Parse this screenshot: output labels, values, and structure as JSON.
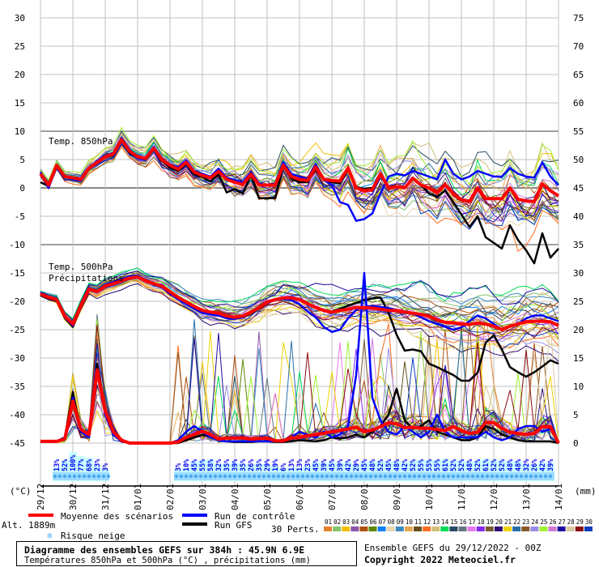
{
  "chart_data": {
    "type": "line",
    "title": "Diagramme des ensembles GEFS sur 384h : 45.9N 6.9E",
    "subtitle": "Températures 850hPa et 500hPa (°C) , précipitations (mm)",
    "run_info": "Ensemble GEFS du 29/12/2022 - 00Z",
    "copyright": "Copyright 2022 Meteociel.fr",
    "altitude_label": "Alt. 1889m",
    "time_step_hours": 6,
    "n_steps": 65,
    "left_axis": {
      "unit_label": "(°C)",
      "ylim": [
        -45,
        30
      ],
      "ticks": [
        "30",
        "25",
        "20",
        "15",
        "10",
        "5",
        "0",
        "-5",
        "-10",
        "-15",
        "-20",
        "-25",
        "-30",
        "-35",
        "-40",
        "-45"
      ]
    },
    "right_axis": {
      "unit_label": "(mm)",
      "ylim": [
        0,
        75
      ],
      "ticks": [
        "75",
        "70",
        "65",
        "60",
        "55",
        "50",
        "45",
        "40",
        "35",
        "30",
        "25",
        "20",
        "15",
        "10",
        "5",
        "0"
      ]
    },
    "x_ticks": [
      "29/12",
      "30/12",
      "31/12",
      "01/01",
      "02/01",
      "03/01",
      "04/01",
      "05/01",
      "06/01",
      "07/01",
      "08/01",
      "09/01",
      "10/01",
      "11/01",
      "12/01",
      "13/01",
      "14/01"
    ],
    "panel_labels": {
      "t850": "Temp. 850hPa",
      "t500": "Temp. 500hPa",
      "precip": "Précipitations"
    },
    "grid": true,
    "series": {
      "t850_mean": [
        2.5,
        0.5,
        4,
        2,
        1.8,
        1.5,
        3.5,
        4.5,
        5.5,
        6,
        8.5,
        6.5,
        5.5,
        5.2,
        7,
        5,
        4,
        3.3,
        4.5,
        2.8,
        2.2,
        1.8,
        2.9,
        1.5,
        1,
        0.6,
        2.4,
        0.5,
        0.5,
        0.5,
        4,
        2,
        1.5,
        1.3,
        3.7,
        1.5,
        1.3,
        1.2,
        3.5,
        0,
        -0.5,
        -0.3,
        2.5,
        0,
        0.2,
        0,
        1.7,
        0.5,
        0,
        -0.9,
        0.6,
        -1,
        -2.1,
        -2.4,
        0,
        -1.9,
        -1.9,
        -1.9,
        0,
        -2,
        -2.3,
        -2.4,
        0.7,
        -0.5,
        -1.4
      ],
      "t850_control": [
        2.8,
        0,
        3.8,
        2.2,
        1.5,
        1.2,
        3.3,
        4.8,
        5.7,
        6.2,
        8.8,
        6.8,
        5.3,
        5,
        7.3,
        5.2,
        4.2,
        3.6,
        4.8,
        3,
        2.5,
        2,
        3.4,
        1.8,
        1.4,
        1,
        2.8,
        0.8,
        0.5,
        0.8,
        4.5,
        2.5,
        2,
        1.6,
        4.2,
        1.4,
        0.5,
        -2.5,
        -3,
        -5.8,
        -5.5,
        -4.5,
        -1,
        2,
        2.5,
        2.2,
        3,
        2.5,
        2,
        1.5,
        5,
        2.5,
        1.5,
        2,
        3,
        2.5,
        2,
        2,
        3.5,
        2.5,
        2,
        1.8,
        4.5,
        2,
        0.5
      ],
      "t850_gfs": [
        1,
        0.3,
        3.8,
        2,
        1.6,
        1.2,
        3.4,
        4.4,
        5.4,
        5.8,
        8.3,
        6.2,
        5.4,
        5,
        6.8,
        4.8,
        3.6,
        3,
        4.2,
        2.4,
        1.9,
        1.1,
        2.4,
        -0.8,
        -0.2,
        -1,
        2.3,
        -1.8,
        -1.8,
        -1.8,
        3.8,
        1.6,
        1,
        1,
        3.4,
        1.4,
        1,
        0.8,
        3.2,
        0.2,
        -0.2,
        0,
        2.4,
        0.2,
        0.3,
        0,
        1.5,
        0.5,
        -1,
        -1.5,
        -0.5,
        -2.5,
        -4.7,
        -6.9,
        -5,
        -8.7,
        -9.7,
        -10.7,
        -6.6,
        -9.2,
        -11,
        -13.3,
        -8,
        -12.3,
        -10.7
      ],
      "t500_mean": [
        -18.7,
        -19.3,
        -19.7,
        -22.6,
        -24,
        -20.7,
        -17.8,
        -18.3,
        -17.3,
        -16.9,
        -16.4,
        -15.9,
        -15.7,
        -16.4,
        -16.9,
        -17.3,
        -18.3,
        -19.3,
        -20.1,
        -20.9,
        -21.6,
        -21.9,
        -22.1,
        -22.6,
        -22.8,
        -22.6,
        -21.9,
        -21.1,
        -20.1,
        -19.7,
        -19.4,
        -19.4,
        -19.7,
        -20.4,
        -21.1,
        -21.6,
        -21.9,
        -21.6,
        -21.4,
        -21.1,
        -21.1,
        -21.2,
        -21.4,
        -21.6,
        -21.6,
        -21.9,
        -22.1,
        -22.3,
        -22.6,
        -23.3,
        -23.7,
        -23.8,
        -24,
        -24.1,
        -23.8,
        -24,
        -24.4,
        -25,
        -24.4,
        -24,
        -23.6,
        -23.5,
        -23.5,
        -23.6,
        -24.3
      ],
      "t500_control": [
        -18.5,
        -19.2,
        -19.8,
        -22.8,
        -24.3,
        -20.5,
        -17.6,
        -18.2,
        -17.1,
        -16.6,
        -16.1,
        -15.6,
        -15.5,
        -16.3,
        -16.8,
        -17.5,
        -18.6,
        -19.6,
        -20.5,
        -21.3,
        -22,
        -22.3,
        -22.5,
        -23,
        -23.1,
        -22.8,
        -22,
        -21.2,
        -20.3,
        -19.8,
        -19.6,
        -19.8,
        -20.5,
        -21.8,
        -22.8,
        -24.5,
        -25.4,
        -25,
        -23,
        -21.5,
        -21,
        -20.8,
        -21,
        -21.2,
        -21.5,
        -22,
        -22.2,
        -22.8,
        -23.5,
        -24,
        -24.5,
        -25,
        -24.6,
        -23.5,
        -22.5,
        -23,
        -24,
        -25,
        -24.5,
        -24,
        -23,
        -22.5,
        -22.5,
        -23,
        -23.5
      ],
      "t500_gfs": [
        -18.9,
        -19.5,
        -19.9,
        -22.9,
        -24.5,
        -20.9,
        -18,
        -18.4,
        -17.4,
        -17,
        -16.5,
        -16,
        -15.8,
        -16.5,
        -17,
        -17.4,
        -18.4,
        -19.4,
        -20.2,
        -21,
        -21.7,
        -22,
        -22.2,
        -22.7,
        -22.9,
        -22.7,
        -22,
        -21.2,
        -20.2,
        -19.8,
        -19.5,
        -19.5,
        -19.8,
        -20.5,
        -21.2,
        -21.7,
        -21.8,
        -21.3,
        -20.8,
        -20.3,
        -19.8,
        -19.5,
        -19.3,
        -22,
        -25.9,
        -28.7,
        -28.5,
        -28.8,
        -31,
        -31.6,
        -32.3,
        -33,
        -34,
        -34,
        -32.6,
        -27.3,
        -26,
        -28.5,
        -31.6,
        -32.5,
        -33.3,
        -32.5,
        -31.5,
        -30.4,
        -31
      ],
      "precip_mean": [
        0.3,
        0.3,
        0.3,
        0.7,
        7.4,
        2.4,
        1.5,
        12.9,
        5.7,
        2,
        0.5,
        0,
        0,
        0,
        0,
        0,
        0,
        0.2,
        1,
        1.5,
        2.1,
        1.5,
        0.7,
        0.9,
        0.9,
        0.9,
        0.7,
        0.8,
        0.9,
        0.4,
        0.4,
        0.9,
        1,
        1.3,
        1.5,
        1.7,
        2,
        2.2,
        2.5,
        2.8,
        2,
        2.3,
        2.9,
        3.6,
        3.4,
        2.7,
        2.8,
        2.6,
        2.6,
        2.4,
        2.2,
        2.9,
        2.2,
        1.7,
        1.9,
        3.6,
        3.6,
        2.6,
        1.9,
        1.7,
        1.5,
        1.7,
        2.9,
        2.9,
        0
      ],
      "precip_control": [
        0.3,
        0.3,
        0.3,
        1,
        8,
        2,
        1,
        13,
        5,
        1.5,
        0.3,
        0,
        0,
        0,
        0,
        0,
        0,
        0.5,
        2,
        3,
        2,
        1,
        0.5,
        0.3,
        0.3,
        0.3,
        0.3,
        0.3,
        0.3,
        0.3,
        0.5,
        1,
        2,
        1.5,
        1,
        2,
        1,
        1.5,
        3,
        12,
        30,
        8,
        4,
        2,
        1.5,
        3,
        2,
        1,
        2,
        5,
        2,
        1,
        1,
        1,
        1,
        2,
        1,
        0.5,
        1,
        2.5,
        3,
        3,
        2,
        2.5,
        0
      ],
      "precip_gfs": [
        0.3,
        0.3,
        0.3,
        1,
        9,
        2,
        1,
        14,
        6,
        1.5,
        0.3,
        0,
        0,
        0,
        0,
        0,
        0,
        0,
        0.5,
        1,
        1.5,
        1,
        0.5,
        0.3,
        0.2,
        0.2,
        0.2,
        0.3,
        0.3,
        0.2,
        0.2,
        0.3,
        0.5,
        0.4,
        0.3,
        0.5,
        1,
        0.8,
        1,
        1.5,
        1,
        2,
        3,
        5,
        9.6,
        4,
        2.5,
        3,
        4,
        2,
        1.5,
        1,
        0.5,
        0.5,
        1,
        3,
        2.5,
        1.5,
        1,
        0.5,
        0.3,
        0.3,
        0.3,
        0.3,
        0
      ]
    },
    "members": {
      "count": 30,
      "spread_t850_start": 0.5,
      "spread_t850_end": 5,
      "spread_t500_start": 0.4,
      "spread_t500_end": 5,
      "labels": [
        "01",
        "02",
        "03",
        "04",
        "05",
        "06",
        "07",
        "08",
        "09",
        "10",
        "11",
        "12",
        "13",
        "14",
        "15",
        "16",
        "17",
        "18",
        "19",
        "20",
        "21",
        "22",
        "23",
        "24",
        "25",
        "26",
        "27",
        "28",
        "29",
        "30"
      ],
      "colors": [
        "#e6822e",
        "#82c46e",
        "#f0c000",
        "#8e55aa",
        "#b05010",
        "#5a8a00",
        "#0a80ff",
        "#e8d6b0",
        "#3c8cbe",
        "#e6a850",
        "#64501e",
        "#ff6e1e",
        "#d2be78",
        "#00dc5a",
        "#284a64",
        "#647882",
        "#e678f0",
        "#8228f0",
        "#785a32",
        "#2d0a78",
        "#f0d200",
        "#286eaa",
        "#8c5a28",
        "#9a8ce6",
        "#a0f032",
        "#d278d2",
        "#1e0aa0",
        "#dcc8a0",
        "#8c0a0a",
        "#0a3cbe"
      ]
    },
    "snow_risk": {
      "groups": [
        {
          "start_step": 2,
          "values": [
            "13%",
            "52%",
            "100%",
            "77%",
            "68%",
            "23%",
            "3%"
          ],
          "pct": [
            13,
            52,
            100,
            77,
            68,
            23,
            3
          ]
        },
        {
          "start_step": 17,
          "values": [
            "3%",
            "10%",
            "45%",
            "55%",
            "58%",
            "32%",
            "35%",
            "39%",
            "35%",
            "26%",
            "35%",
            "29%",
            "19%",
            "6%",
            "13%",
            "13%",
            "23%",
            "45%",
            "39%",
            "45%",
            "39%",
            "42%",
            "29%",
            "45%",
            "48%",
            "52%",
            "45%",
            "48%",
            "42%",
            "52%",
            "55%",
            "55%",
            "55%",
            "61%",
            "52%",
            "52%",
            "48%",
            "52%",
            "61%",
            "52%",
            "52%",
            "48%",
            "48%",
            "32%",
            "26%",
            "42%",
            "39%"
          ],
          "pct": [
            3,
            10,
            45,
            55,
            58,
            32,
            35,
            39,
            35,
            26,
            35,
            29,
            19,
            6,
            13,
            13,
            23,
            45,
            39,
            45,
            39,
            42,
            29,
            45,
            48,
            52,
            45,
            48,
            42,
            52,
            55,
            55,
            55,
            61,
            52,
            52,
            48,
            52,
            61,
            52,
            52,
            48,
            48,
            32,
            26,
            42,
            39
          ]
        }
      ]
    },
    "colors": {
      "mean": "#ff0000",
      "control": "#0000ff",
      "gfs": "#000000",
      "grid": "#c0c0c0",
      "grid_strong": "#a0a0a0",
      "snow_band": "#c8ffff",
      "snow_text": "#0000ee"
    }
  },
  "legend": {
    "mean_label": "Moyenne des scénarios",
    "control_label": "Run de contrôle",
    "gfs_label": "Run GFS",
    "snow_label": "Risque neige",
    "perts_label": "30 Perts."
  }
}
